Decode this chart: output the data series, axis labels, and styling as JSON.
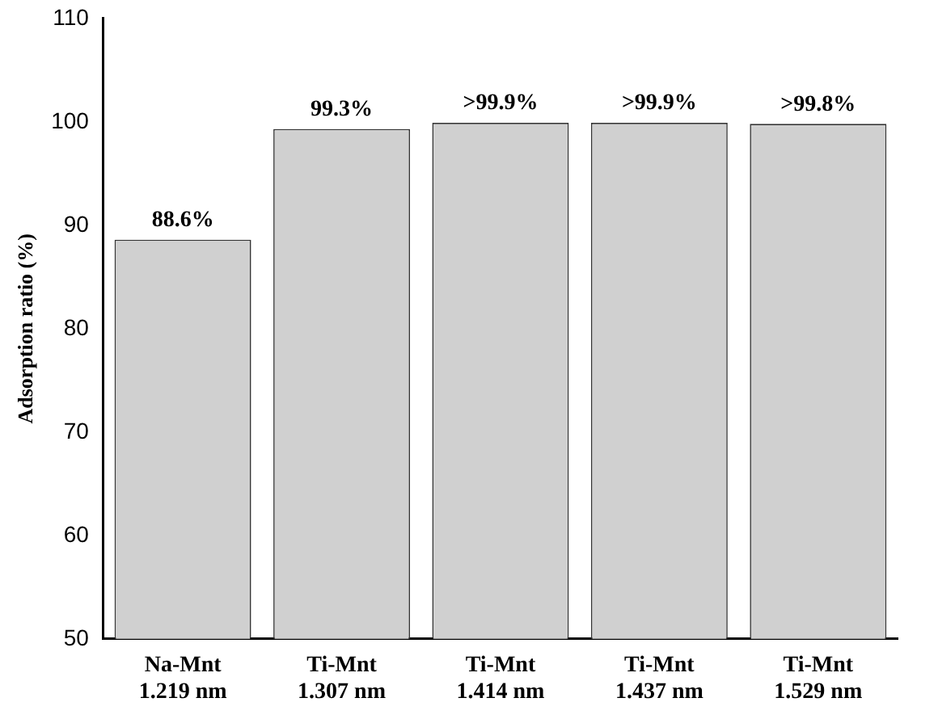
{
  "chart_data": {
    "type": "bar",
    "ylabel": "Adsorption ratio (%)",
    "categories": [
      "Na-Mnt\n1.219 nm",
      "Ti-Mnt\n1.307 nm",
      "Ti-Mnt\n1.414 nm",
      "Ti-Mnt\n1.437 nm",
      "Ti-Mnt\n1.529 nm"
    ],
    "values": [
      88.6,
      99.3,
      99.9,
      99.9,
      99.8
    ],
    "value_labels": [
      "88.6%",
      "99.3%",
      ">99.9%",
      ">99.9%",
      ">99.8%"
    ],
    "color": "#d0d0d0",
    "ylim": [
      50,
      110
    ],
    "yticks": [
      50,
      60,
      70,
      80,
      90,
      100,
      110
    ],
    "grid": false
  }
}
